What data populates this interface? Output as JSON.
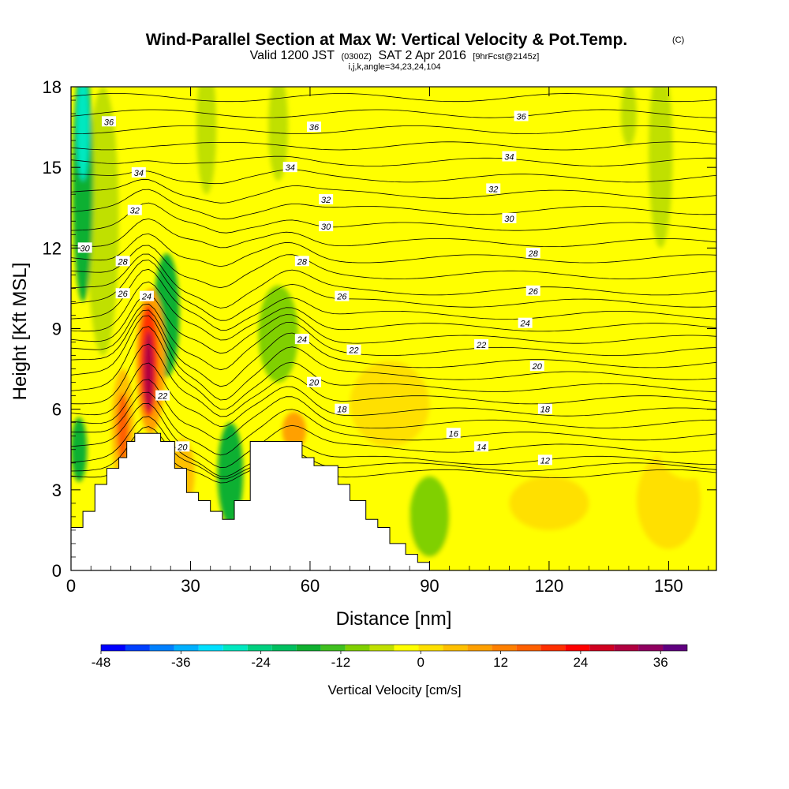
{
  "header": {
    "title": "Wind-Parallel Section at Max W: Vertical Velocity & Pot.Temp.",
    "title_mark": "(C)",
    "valid_prefix": "Valid 1200 JST",
    "valid_z": "(0300Z)",
    "valid_date": "SAT 2 Apr 2016",
    "forecast": "[9hrFcst@2145z]",
    "params": "i,j,k,angle=34,23,24,104"
  },
  "chart_data": {
    "type": "heatmap",
    "title": "Wind-Parallel Section at Max W: Vertical Velocity & Pot.Temp.",
    "xlabel": "Distance [nm]",
    "ylabel": "Height [Kft MSL]",
    "xlim": [
      0,
      162
    ],
    "ylim": [
      0,
      18
    ],
    "x_ticks": [
      "0",
      "30",
      "60",
      "90",
      "120",
      "150"
    ],
    "y_ticks": [
      "0",
      "3",
      "6",
      "9",
      "12",
      "15",
      "18"
    ],
    "colorbar": {
      "label": "Vertical Velocity [cm/s]",
      "range": [
        -48,
        40
      ],
      "step": 4,
      "tick_labels": [
        "-48",
        "-36",
        "-24",
        "-12",
        "0",
        "12",
        "24",
        "36"
      ],
      "colors": [
        "#0000ff",
        "#0040ff",
        "#0080ff",
        "#00b0ff",
        "#00e0ff",
        "#00e8c0",
        "#00d080",
        "#00c060",
        "#10b030",
        "#40c020",
        "#80d000",
        "#c0e000",
        "#ffff00",
        "#ffe000",
        "#ffc000",
        "#ffa000",
        "#ff8000",
        "#ff6000",
        "#ff3000",
        "#ff0000",
        "#d00020",
        "#b00040",
        "#900060",
        "#600080"
      ]
    },
    "velocity_features": [
      {
        "kind": "updraft",
        "x": 19.5,
        "y": 7.6,
        "w_max": 36
      },
      {
        "kind": "updraft",
        "x": 13,
        "y": 5.3,
        "w_max": 22
      },
      {
        "kind": "downdraft",
        "x": 3,
        "y": 14.5,
        "w_min": -36
      },
      {
        "kind": "downdraft",
        "x": 24,
        "y": 9.5,
        "w_min": -18
      },
      {
        "kind": "downdraft",
        "x": 40,
        "y": 3.5,
        "w_min": -20
      },
      {
        "kind": "downdraft",
        "x": 90,
        "y": 2.0,
        "w_min": -10
      }
    ],
    "theta_contours": [
      {
        "label": "12",
        "label_x": 119,
        "label_y": 4.1
      },
      {
        "label": "14",
        "label_x": 103,
        "label_y": 4.6
      },
      {
        "label": "16",
        "label_x": 96,
        "label_y": 5.1
      },
      {
        "label": "18",
        "label_x": 68,
        "label_y": 6.0
      },
      {
        "label": "18",
        "label_x": 119,
        "label_y": 6.0
      },
      {
        "label": "20",
        "label_x": 61,
        "label_y": 7.0
      },
      {
        "label": "20",
        "label_x": 117,
        "label_y": 7.6
      },
      {
        "label": "20",
        "label_x": 28,
        "label_y": 4.6
      },
      {
        "label": "22",
        "label_x": 23,
        "label_y": 6.5
      },
      {
        "label": "22",
        "label_x": 71,
        "label_y": 8.2
      },
      {
        "label": "22",
        "label_x": 103,
        "label_y": 8.4
      },
      {
        "label": "24",
        "label_x": 19,
        "label_y": 10.2
      },
      {
        "label": "24",
        "label_x": 58,
        "label_y": 8.6
      },
      {
        "label": "24",
        "label_x": 114,
        "label_y": 9.2
      },
      {
        "label": "26",
        "label_x": 13,
        "label_y": 10.3
      },
      {
        "label": "26",
        "label_x": 68,
        "label_y": 10.2
      },
      {
        "label": "26",
        "label_x": 116,
        "label_y": 10.4
      },
      {
        "label": "28",
        "label_x": 13,
        "label_y": 11.5
      },
      {
        "label": "28",
        "label_x": 58,
        "label_y": 11.5
      },
      {
        "label": "28",
        "label_x": 116,
        "label_y": 11.8
      },
      {
        "label": "30",
        "label_x": 3.5,
        "label_y": 12.0
      },
      {
        "label": "30",
        "label_x": 64,
        "label_y": 12.8
      },
      {
        "label": "30",
        "label_x": 110,
        "label_y": 13.1
      },
      {
        "label": "32",
        "label_x": 16,
        "label_y": 13.4
      },
      {
        "label": "32",
        "label_x": 64,
        "label_y": 13.8
      },
      {
        "label": "32",
        "label_x": 106,
        "label_y": 14.2
      },
      {
        "label": "34",
        "label_x": 17,
        "label_y": 14.8
      },
      {
        "label": "34",
        "label_x": 55,
        "label_y": 15.0
      },
      {
        "label": "34",
        "label_x": 110,
        "label_y": 15.4
      },
      {
        "label": "36",
        "label_x": 9.5,
        "label_y": 16.7
      },
      {
        "label": "36",
        "label_x": 61,
        "label_y": 16.5
      },
      {
        "label": "36",
        "label_x": 113,
        "label_y": 16.9
      }
    ],
    "terrain": [
      [
        0,
        1.6
      ],
      [
        3,
        1.6
      ],
      [
        3,
        2.2
      ],
      [
        6,
        2.2
      ],
      [
        6,
        3.2
      ],
      [
        9,
        3.2
      ],
      [
        9,
        3.8
      ],
      [
        12,
        3.8
      ],
      [
        12,
        4.2
      ],
      [
        14,
        4.2
      ],
      [
        14,
        4.8
      ],
      [
        16,
        4.8
      ],
      [
        16,
        5.1
      ],
      [
        22.5,
        5.1
      ],
      [
        22.5,
        4.8
      ],
      [
        26,
        4.8
      ],
      [
        26,
        3.8
      ],
      [
        29,
        3.8
      ],
      [
        29,
        2.9
      ],
      [
        32,
        2.9
      ],
      [
        32,
        2.6
      ],
      [
        35,
        2.6
      ],
      [
        35,
        2.2
      ],
      [
        38,
        2.2
      ],
      [
        38,
        1.9
      ],
      [
        41,
        1.9
      ],
      [
        41,
        2.6
      ],
      [
        45,
        2.6
      ],
      [
        45,
        4.8
      ],
      [
        58,
        4.8
      ],
      [
        58,
        4.2
      ],
      [
        61,
        4.2
      ],
      [
        61,
        3.9
      ],
      [
        67,
        3.9
      ],
      [
        67,
        3.2
      ],
      [
        70,
        3.2
      ],
      [
        70,
        2.6
      ],
      [
        74,
        2.6
      ],
      [
        74,
        1.9
      ],
      [
        77,
        1.9
      ],
      [
        77,
        1.6
      ],
      [
        80,
        1.6
      ],
      [
        80,
        1.0
      ],
      [
        84,
        1.0
      ],
      [
        84,
        0.6
      ],
      [
        87,
        0.6
      ],
      [
        87,
        0.3
      ],
      [
        90,
        0.3
      ],
      [
        90,
        0
      ],
      [
        0,
        0
      ]
    ]
  }
}
